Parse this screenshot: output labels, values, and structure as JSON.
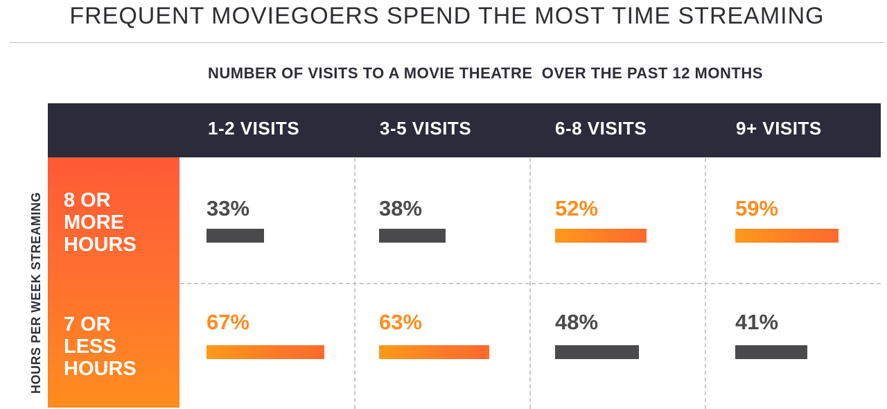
{
  "title": "FREQUENT MOVIEGOERS SPEND THE MOST TIME STREAMING",
  "column_axis_title": "NUMBER OF VISITS TO A MOVIE THEATRE  OVER THE PAST 12 MONTHS",
  "row_axis_title": "HOURS PER WEEK STREAMING",
  "columns": [
    "1-2 VISITS",
    "3-5 VISITS",
    "6-8 VISITS",
    "9+ VISITS"
  ],
  "rows": [
    "8 OR\nMORE\nHOURS",
    "7 OR\nLESS\nHOURS"
  ],
  "colors": {
    "header": "#2c2b3c",
    "highlight": "#ff8c1e",
    "neutral": "#4a4a4c",
    "side_band_top": "#ff5a36",
    "side_band_bottom": "#ff8d1e"
  },
  "chart_data": {
    "type": "table",
    "title": "FREQUENT MOVIEGOERS SPEND THE MOST TIME STREAMING",
    "xlabel": "NUMBER OF VISITS TO A MOVIE THEATRE  OVER THE PAST 12 MONTHS",
    "ylabel": "HOURS PER WEEK STREAMING",
    "categories": [
      "1-2 VISITS",
      "3-5 VISITS",
      "6-8 VISITS",
      "9+ VISITS"
    ],
    "series": [
      {
        "name": "8 OR MORE HOURS",
        "values": [
          33,
          38,
          52,
          59
        ],
        "labels": [
          "33%",
          "38%",
          "52%",
          "59%"
        ],
        "highlight": [
          false,
          false,
          true,
          true
        ]
      },
      {
        "name": "7 OR LESS HOURS",
        "values": [
          67,
          63,
          48,
          41
        ],
        "labels": [
          "67%",
          "63%",
          "48%",
          "41%"
        ],
        "highlight": [
          true,
          true,
          false,
          false
        ]
      }
    ]
  }
}
